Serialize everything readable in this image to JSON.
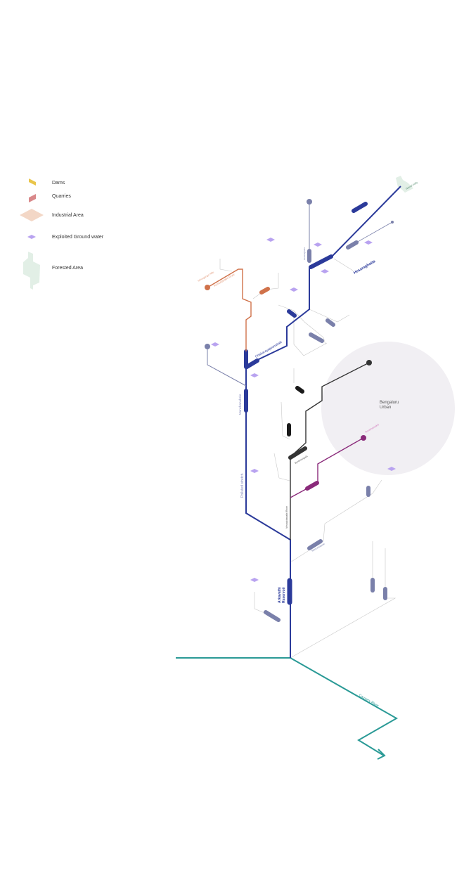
{
  "colors": {
    "arkavathi": "#2b3a9a",
    "tributary_slate": "#7a80aa",
    "kumudavathi": "#d0724a",
    "vrishabhavathi": "#333333",
    "suvarnamukhi": "#8a2a7a",
    "cauvery": "#2a9a96",
    "urban_circle": "#f1eff3",
    "groundwater": "#b9a3f0",
    "forest": "#e2efe6",
    "industrial": "#f3d7c6",
    "dam": "#e9c54a",
    "quarry": "#d9888a",
    "connector": "#c8c8c8"
  },
  "legend": [
    {
      "icon": "dam-icon",
      "label": "Dams"
    },
    {
      "icon": "quarry-icon",
      "label": "Quarries"
    },
    {
      "icon": "industrial-area-icon",
      "label": "Industrial Area"
    },
    {
      "icon": "groundwater-icon",
      "label": "Exploited Ground water"
    },
    {
      "icon": "forested-area-icon",
      "label": "Forested Area"
    }
  ],
  "labels": {
    "bengaluru_urban": "Bengaluru\nUrban",
    "nandi_hills": "Nandi Hills",
    "hesaraghatta": "Hesaraghatta",
    "chikkarayappanahalli": "Chikkarayappanahalli",
    "manchanabele": "Manchanabele",
    "polluted_stretch": "Polluted stretch",
    "arkavathi_reservoir": "Arkavathi\nReservoir",
    "vrishabhavathi_river": "Vrishabhavathi River",
    "kumudavathi_river": "Kumudavathi River",
    "cauvery_river": "Cauvery River",
    "byramangala": "Byramangala",
    "harohalli": "Harohalli",
    "thippagondanahalli": "Thippagondanahalli",
    "kumudavathi_source": "Shivagange Hills",
    "suvarnamukhi_source": "Suvarnamukhi"
  }
}
